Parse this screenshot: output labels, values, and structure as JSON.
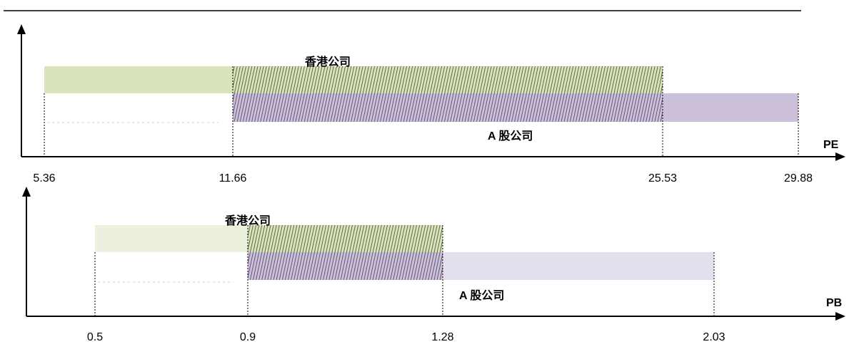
{
  "chart_data": [
    {
      "type": "range-bar",
      "axis_label": "PE",
      "ticks": [
        "5.36",
        "11.66",
        "25.53",
        "29.88"
      ],
      "series": [
        {
          "name": "香港公司",
          "from": 5.36,
          "to": 25.53
        },
        {
          "name": "A 股公司",
          "from": 11.66,
          "to": 29.88
        }
      ],
      "overlap": {
        "from": 11.66,
        "to": 25.53
      }
    },
    {
      "type": "range-bar",
      "axis_label": "PB",
      "ticks": [
        "0.5",
        "0.9",
        "1.28",
        "2.03"
      ],
      "series": [
        {
          "name": "香港公司",
          "from": 0.5,
          "to": 1.28
        },
        {
          "name": "A 股公司",
          "from": 0.9,
          "to": 2.03
        }
      ],
      "overlap": {
        "from": 0.9,
        "to": 1.28
      }
    }
  ],
  "colors": {
    "hk": "#d8e4bc",
    "hk_light": "#ebf1de",
    "a": "#ccc0da",
    "a_light": "#e4dfec",
    "hatch_green": "#3f4a2a",
    "hatch_purple": "#4a3d5c",
    "axis": "#000000",
    "rule": "#000000"
  }
}
